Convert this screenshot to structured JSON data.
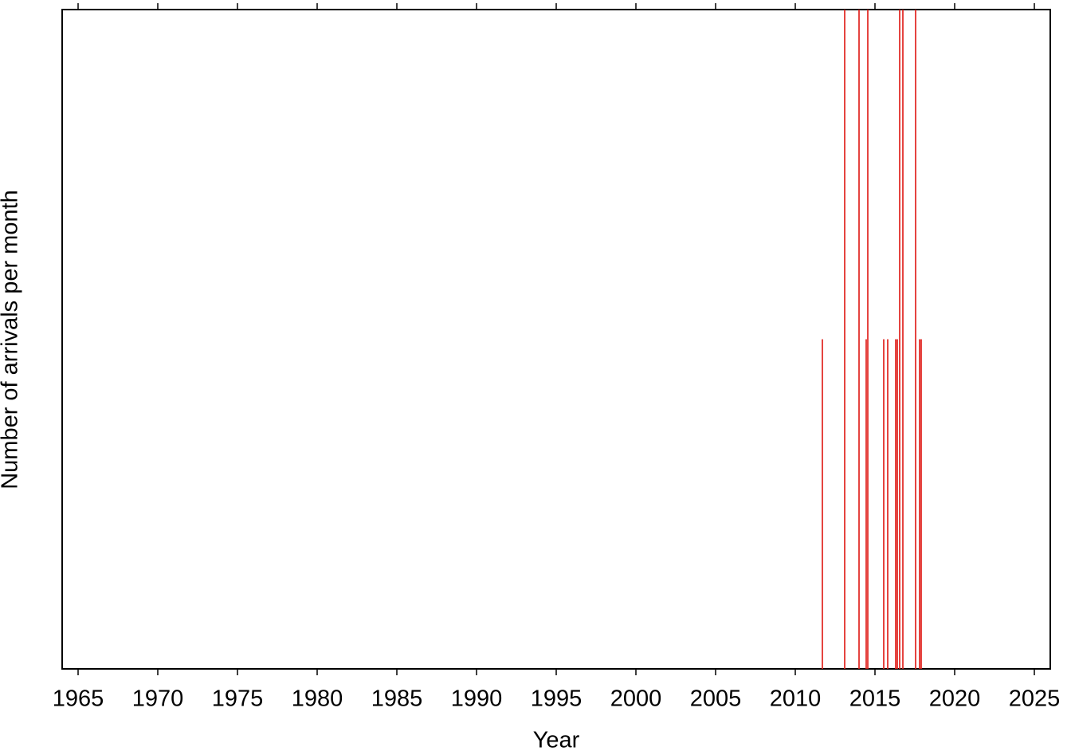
{
  "chart_data": {
    "type": "bar",
    "x_label": "Year",
    "y_label": "Number of arrivals per month",
    "x": [
      2011.7,
      2013.1,
      2014.0,
      2014.45,
      2014.55,
      2015.55,
      2015.8,
      2016.3,
      2016.4,
      2016.55,
      2016.75,
      2017.55,
      2017.8,
      2017.9
    ],
    "values": [
      1,
      2,
      2,
      1,
      2,
      1,
      1,
      1,
      1,
      2,
      2,
      2,
      1,
      1
    ],
    "color": "#e0201b",
    "xlim": [
      1964,
      2026
    ],
    "ylim": [
      0,
      2
    ],
    "xticks": [
      1965,
      1970,
      1975,
      1980,
      1985,
      1990,
      1995,
      2000,
      2005,
      2010,
      2015,
      2020,
      2025
    ]
  }
}
